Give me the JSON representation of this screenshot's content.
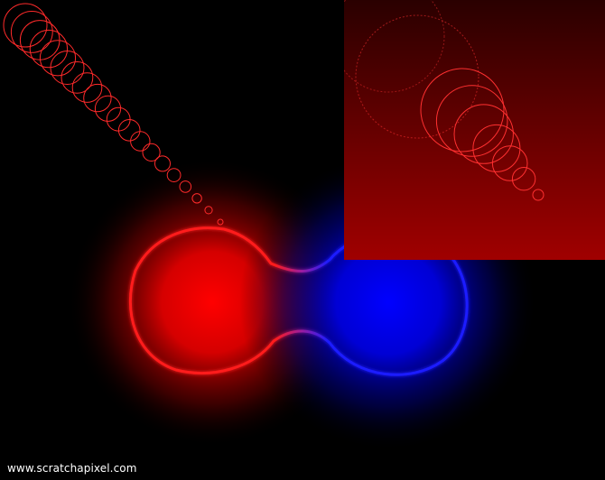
{
  "colors": {
    "background": "#000000",
    "red_blob": "#ff0000",
    "blue_blob": "#0000ff",
    "isocontour_red": "#ff1a1a",
    "isocontour_blue": "#1a1aff",
    "circle_stroke": "#ff2a2a",
    "inset_top": "#2a0000",
    "inset_bottom": "#a00000",
    "watermark_text": "#ffffff"
  },
  "watermark": {
    "text": "www.scratchapixel.com"
  }
}
